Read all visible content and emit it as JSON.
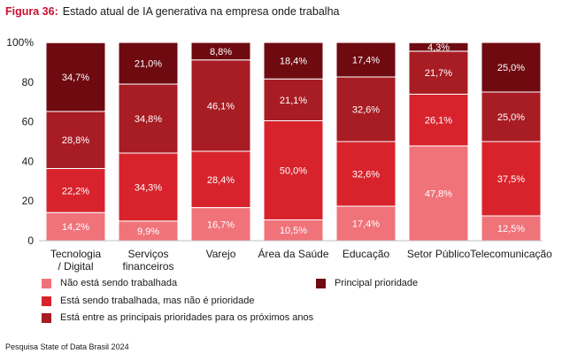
{
  "figure": {
    "label": "Figura 36:",
    "title": "Estado atual de IA generativa na empresa onde trabalha"
  },
  "source": "Pesquisa State of Data Brasil 2024",
  "colors": {
    "nao_trabalhada": "#f0737a",
    "sem_prioridade": "#d8232c",
    "principais": "#a81c24",
    "principal": "#6e0a10"
  },
  "chart_data": {
    "type": "bar",
    "stacked": true,
    "categories": [
      [
        "Tecnologia",
        "/ Digital"
      ],
      [
        "Serviços",
        "financeiros"
      ],
      [
        "Varejo"
      ],
      [
        "Área da Saúde"
      ],
      [
        "Educação"
      ],
      [
        "Setor Público"
      ],
      [
        "Telecomunicação"
      ]
    ],
    "series": [
      {
        "name": "Não está sendo trabalhada",
        "color": "#f0737a",
        "values": [
          14.2,
          9.9,
          16.7,
          10.5,
          17.4,
          47.8,
          12.5
        ],
        "labels": [
          "14,2%",
          "9,9%",
          "16,7%",
          "10,5%",
          "17,4%",
          "47,8%",
          "12,5%"
        ]
      },
      {
        "name": "Está sendo trabalhada, mas não é prioridade",
        "color": "#d8232c",
        "values": [
          22.2,
          34.3,
          28.4,
          50.0,
          32.6,
          26.1,
          37.5
        ],
        "labels": [
          "22,2%",
          "34,3%",
          "28,4%",
          "50,0%",
          "32,6%",
          "26,1%",
          "37,5%"
        ]
      },
      {
        "name": "Está entre as principais prioridades para os próximos anos",
        "color": "#a81c24",
        "values": [
          28.8,
          34.8,
          46.1,
          21.1,
          32.6,
          21.7,
          25.0
        ],
        "labels": [
          "28,8%",
          "34,8%",
          "46,1%",
          "21,1%",
          "32,6%",
          "21,7%",
          "25,0%"
        ]
      },
      {
        "name": "Principal prioridade",
        "color": "#6e0a10",
        "values": [
          34.7,
          21.0,
          8.8,
          18.4,
          17.4,
          4.3,
          25.0
        ],
        "labels": [
          "34,7%",
          "21,0%",
          "8,8%",
          "18,4%",
          "17,4%",
          "4,3%",
          "25,0%"
        ]
      }
    ],
    "y_ticks": [
      "0",
      "20",
      "40",
      "60",
      "80",
      "100%"
    ],
    "ylim": [
      0,
      100
    ],
    "grid": false,
    "legend_position": "bottom"
  }
}
